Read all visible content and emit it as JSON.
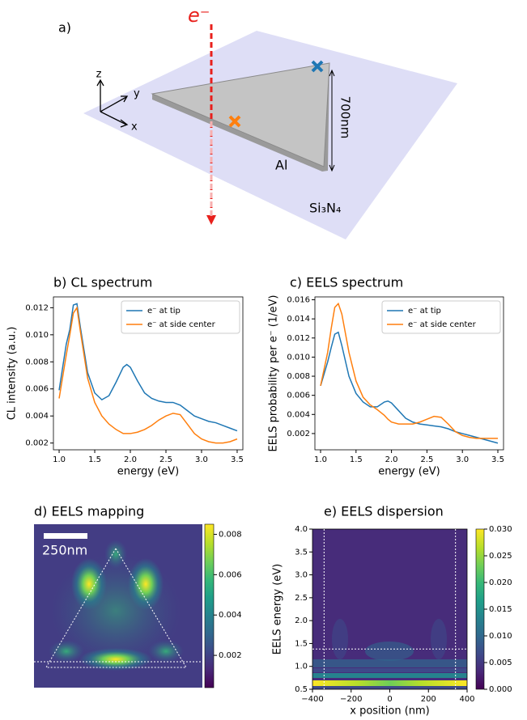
{
  "illustration": {
    "panel_label": "a)",
    "electron": "e⁻",
    "axis_z": "z",
    "axis_y": "y",
    "axis_x": "x",
    "size_label": "700nm",
    "material": "Al",
    "substrate": "Si₃N₄"
  },
  "chart_data": [
    {
      "type": "line",
      "title": "b) CL spectrum",
      "x_label": "energy (eV)",
      "y_label": "CL intensity (a.u.)",
      "x": [
        1.0,
        1.1,
        1.15,
        1.2,
        1.25,
        1.3,
        1.4,
        1.5,
        1.6,
        1.7,
        1.8,
        1.9,
        1.95,
        2.0,
        2.1,
        2.2,
        2.3,
        2.4,
        2.5,
        2.6,
        2.7,
        2.8,
        2.9,
        3.0,
        3.1,
        3.2,
        3.3,
        3.4,
        3.5
      ],
      "series": [
        {
          "name": "e⁻ at tip",
          "color": "#1f77b4",
          "values": [
            0.0059,
            0.0093,
            0.0104,
            0.0122,
            0.0123,
            0.0105,
            0.0072,
            0.0057,
            0.0052,
            0.0055,
            0.0065,
            0.0076,
            0.0078,
            0.0076,
            0.0066,
            0.0057,
            0.0053,
            0.0051,
            0.005,
            0.005,
            0.0048,
            0.0044,
            0.004,
            0.0038,
            0.0036,
            0.0035,
            0.0033,
            0.0031,
            0.0029
          ]
        },
        {
          "name": "e⁻ at side center",
          "color": "#ff7f0e",
          "values": [
            0.0053,
            0.0085,
            0.01,
            0.0116,
            0.012,
            0.0102,
            0.0068,
            0.005,
            0.004,
            0.0034,
            0.003,
            0.0027,
            0.0027,
            0.0027,
            0.0028,
            0.003,
            0.0033,
            0.0037,
            0.004,
            0.0042,
            0.0041,
            0.0034,
            0.0027,
            0.0023,
            0.0021,
            0.002,
            0.002,
            0.0021,
            0.0023
          ]
        }
      ],
      "xlim": [
        0.92,
        3.58
      ],
      "xticks": [
        {
          "value": 1,
          "label": "1.0"
        },
        1.5,
        {
          "value": 2,
          "label": "2.0"
        },
        2.5,
        {
          "value": 3,
          "label": "3.0"
        },
        3.5
      ],
      "ylim": [
        0.0015,
        0.0128
      ],
      "yticks": [
        0.002,
        0.004,
        0.006,
        0.008,
        {
          "value": 0.01,
          "label": "0.010"
        },
        0.012
      ],
      "legend": "upper right"
    },
    {
      "type": "line",
      "title": "c) EELS spectrum",
      "x_label": "energy (eV)",
      "y_label": "EELS probability per e⁻ (1/eV)",
      "x": [
        1.0,
        1.1,
        1.15,
        1.2,
        1.25,
        1.3,
        1.4,
        1.5,
        1.6,
        1.7,
        1.8,
        1.9,
        1.95,
        2.0,
        2.1,
        2.2,
        2.3,
        2.4,
        2.5,
        2.6,
        2.7,
        2.8,
        2.9,
        3.0,
        3.1,
        3.2,
        3.3,
        3.4,
        3.5
      ],
      "series": [
        {
          "name": "e⁻ at tip",
          "color": "#1f77b4",
          "values": [
            0.007,
            0.0095,
            0.011,
            0.0124,
            0.0126,
            0.0112,
            0.008,
            0.0062,
            0.0053,
            0.0048,
            0.0048,
            0.0053,
            0.0054,
            0.0052,
            0.0044,
            0.0036,
            0.0032,
            0.003,
            0.0029,
            0.0028,
            0.0027,
            0.0025,
            0.0022,
            0.002,
            0.0018,
            0.0016,
            0.0014,
            0.0012,
            0.001
          ]
        },
        {
          "name": "e⁻ at side center",
          "color": "#ff7f0e",
          "values": [
            0.007,
            0.0105,
            0.013,
            0.0152,
            0.0156,
            0.0145,
            0.0105,
            0.0075,
            0.0058,
            0.005,
            0.0045,
            0.0039,
            0.0035,
            0.0032,
            0.003,
            0.003,
            0.003,
            0.0032,
            0.0035,
            0.0038,
            0.0037,
            0.003,
            0.0022,
            0.0018,
            0.0016,
            0.0015,
            0.0015,
            0.0015,
            0.0015
          ]
        }
      ],
      "xlim": [
        0.92,
        3.58
      ],
      "xticks": [
        {
          "value": 1,
          "label": "1.0"
        },
        1.5,
        {
          "value": 2,
          "label": "2.0"
        },
        2.5,
        {
          "value": 3,
          "label": "3.0"
        },
        3.5
      ],
      "ylim": [
        0.0003,
        0.0163
      ],
      "yticks": [
        0.002,
        0.004,
        0.006,
        0.008,
        {
          "value": 0.01,
          "label": "0.010"
        },
        0.012,
        0.014,
        0.016
      ],
      "legend": "upper right"
    },
    {
      "type": "heatmap",
      "title": "d) EELS mapping",
      "scale_bar": "250nm",
      "clim": [
        0.0004,
        0.0085
      ],
      "cticks": [
        0.002,
        0.004,
        0.006,
        0.008
      ]
    },
    {
      "type": "heatmap",
      "title": "e) EELS dispersion",
      "x_label": "x position (nm)",
      "y_label": "EELS energy (eV)",
      "xlim": [
        -400,
        400
      ],
      "xticks": [
        {
          "value": -400,
          "label": "−400"
        },
        {
          "value": -200,
          "label": "−200"
        },
        0,
        200,
        400
      ],
      "ylim": [
        0.5,
        4.0
      ],
      "yticks": [
        0.5,
        {
          "value": 1,
          "label": "1.0"
        },
        1.5,
        {
          "value": 2,
          "label": "2.0"
        },
        2.5,
        {
          "value": 3,
          "label": "3.0"
        },
        3.5,
        {
          "value": 4,
          "label": "4.0"
        }
      ],
      "clim": [
        0,
        0.03
      ],
      "cticks": [
        {
          "value": 0,
          "label": "0.000"
        },
        0.005,
        {
          "value": 0.01,
          "label": "0.010"
        },
        0.015,
        {
          "value": 0.02,
          "label": "0.020"
        },
        0.025,
        {
          "value": 0.03,
          "label": "0.030"
        }
      ],
      "vlines": [
        -340,
        340
      ],
      "hlines": [
        1.38
      ]
    }
  ]
}
